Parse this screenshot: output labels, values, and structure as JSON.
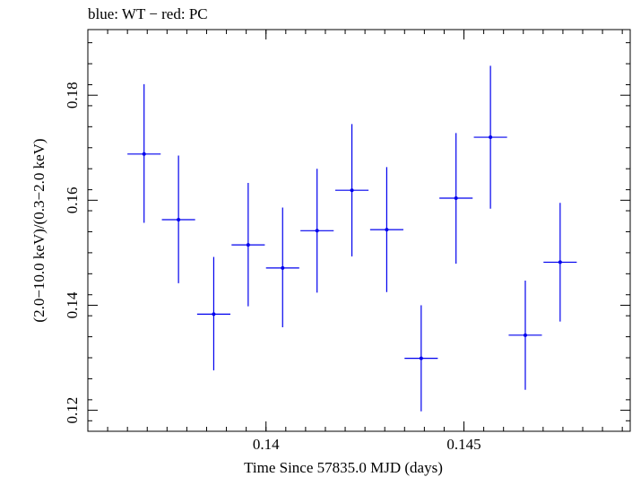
{
  "chart_data": {
    "type": "scatter",
    "title": "blue: WT − red: PC",
    "xlabel": "Time Since 57835.0 MJD (days)",
    "ylabel": "(2.0−10.0 keV)/(0.3−2.0 keV)",
    "xlim": [
      0.1355,
      0.1492
    ],
    "ylim": [
      0.116,
      0.1925
    ],
    "x_ticks": [
      0.14,
      0.145
    ],
    "x_tick_labels": [
      "0.14",
      "0.145"
    ],
    "y_ticks": [
      0.12,
      0.14,
      0.16,
      0.18
    ],
    "y_tick_labels": [
      "0.12",
      "0.14",
      "0.16",
      "0.18"
    ],
    "series": [
      {
        "color": "#0000ee",
        "points": [
          {
            "x": 0.13692,
            "y": 0.1688,
            "xerr": 0.00042,
            "yerr_low": 0.0131,
            "yerr_high": 0.0133
          },
          {
            "x": 0.13779,
            "y": 0.1563,
            "xerr": 0.00042,
            "yerr_low": 0.0121,
            "yerr_high": 0.0122
          },
          {
            "x": 0.13868,
            "y": 0.1383,
            "xerr": 0.00042,
            "yerr_low": 0.0107,
            "yerr_high": 0.0109
          },
          {
            "x": 0.13955,
            "y": 0.1515,
            "xerr": 0.00042,
            "yerr_low": 0.0117,
            "yerr_high": 0.0118
          },
          {
            "x": 0.14042,
            "y": 0.1471,
            "xerr": 0.00042,
            "yerr_low": 0.0113,
            "yerr_high": 0.0115
          },
          {
            "x": 0.14129,
            "y": 0.1542,
            "xerr": 0.00042,
            "yerr_low": 0.0118,
            "yerr_high": 0.0118
          },
          {
            "x": 0.14217,
            "y": 0.1619,
            "xerr": 0.00042,
            "yerr_low": 0.0126,
            "yerr_high": 0.0126
          },
          {
            "x": 0.14305,
            "y": 0.1544,
            "xerr": 0.00042,
            "yerr_low": 0.0119,
            "yerr_high": 0.0119
          },
          {
            "x": 0.14392,
            "y": 0.1299,
            "xerr": 0.00042,
            "yerr_low": 0.0101,
            "yerr_high": 0.0101
          },
          {
            "x": 0.1448,
            "y": 0.1604,
            "xerr": 0.00042,
            "yerr_low": 0.0125,
            "yerr_high": 0.0124
          },
          {
            "x": 0.14567,
            "y": 0.172,
            "xerr": 0.00042,
            "yerr_low": 0.0136,
            "yerr_high": 0.0136
          },
          {
            "x": 0.14655,
            "y": 0.1343,
            "xerr": 0.00042,
            "yerr_low": 0.0104,
            "yerr_high": 0.0104
          },
          {
            "x": 0.14743,
            "y": 0.1482,
            "xerr": 0.00042,
            "yerr_low": 0.0113,
            "yerr_high": 0.0113
          }
        ]
      }
    ],
    "grid": false,
    "legend": "none"
  }
}
